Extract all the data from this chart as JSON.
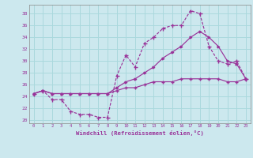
{
  "xlabel": "Windchill (Refroidissement éolien,°C)",
  "background_color": "#cce8ee",
  "grid_color": "#aad8dd",
  "line_color": "#993399",
  "xlim": [
    -0.5,
    23.5
  ],
  "ylim": [
    19.5,
    39.5
  ],
  "xticks": [
    0,
    1,
    2,
    3,
    4,
    5,
    6,
    7,
    8,
    9,
    10,
    11,
    12,
    13,
    14,
    15,
    16,
    17,
    18,
    19,
    20,
    21,
    22,
    23
  ],
  "yticks": [
    20,
    22,
    24,
    26,
    28,
    30,
    32,
    34,
    36,
    38
  ],
  "line1_x": [
    0,
    1,
    2,
    3,
    4,
    5,
    6,
    7,
    8,
    9,
    10,
    11,
    12,
    13,
    14,
    15,
    16,
    17,
    18,
    19,
    20,
    21,
    22,
    23
  ],
  "line1_y": [
    24.5,
    25.0,
    23.5,
    23.5,
    21.5,
    21.0,
    21.0,
    20.5,
    20.5,
    27.5,
    31.0,
    29.0,
    33.0,
    34.0,
    35.5,
    36.0,
    36.0,
    38.5,
    38.0,
    32.5,
    30.0,
    29.5,
    30.0,
    27.0
  ],
  "line2_x": [
    0,
    1,
    2,
    3,
    4,
    5,
    6,
    7,
    8,
    9,
    10,
    11,
    12,
    13,
    14,
    15,
    16,
    17,
    18,
    19,
    20,
    21,
    22,
    23
  ],
  "line2_y": [
    24.5,
    25.0,
    24.5,
    24.5,
    24.5,
    24.5,
    24.5,
    24.5,
    24.5,
    25.5,
    26.5,
    27.0,
    28.0,
    29.0,
    30.5,
    31.5,
    32.5,
    34.0,
    35.0,
    34.0,
    32.5,
    30.0,
    29.5,
    27.0
  ],
  "line3_x": [
    0,
    1,
    2,
    3,
    4,
    5,
    6,
    7,
    8,
    9,
    10,
    11,
    12,
    13,
    14,
    15,
    16,
    17,
    18,
    19,
    20,
    21,
    22,
    23
  ],
  "line3_y": [
    24.5,
    25.0,
    24.5,
    24.5,
    24.5,
    24.5,
    24.5,
    24.5,
    24.5,
    25.0,
    25.5,
    25.5,
    26.0,
    26.5,
    26.5,
    26.5,
    27.0,
    27.0,
    27.0,
    27.0,
    27.0,
    26.5,
    26.5,
    27.0
  ]
}
